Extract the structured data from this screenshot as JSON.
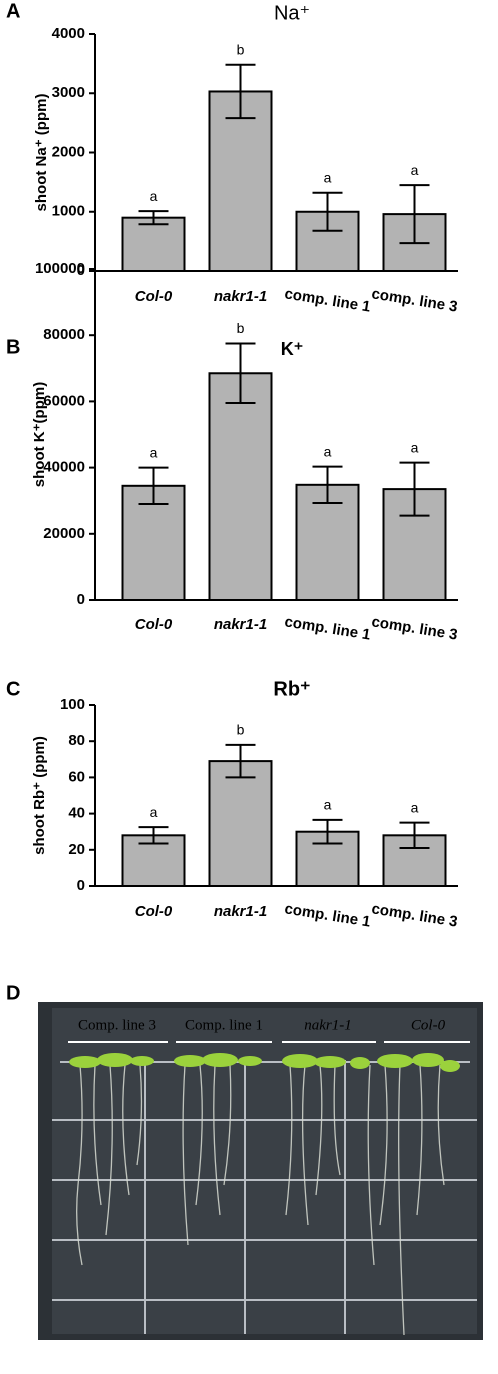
{
  "chart_data": [
    {
      "type": "bar",
      "panel": "A",
      "title": "Na⁺",
      "y_label": "shoot Na⁺ (ppm)",
      "categories": [
        "Col-0",
        "nakr1-1",
        "comp. line 1",
        "comp. line 3"
      ],
      "values": [
        900,
        3030,
        1000,
        960
      ],
      "errors": [
        110,
        450,
        320,
        490
      ],
      "annotations": [
        "a",
        "b",
        "a",
        "a"
      ],
      "color": "#b3b3b3",
      "ylim": [
        0,
        4000
      ],
      "yticks": [
        0,
        1000,
        2000,
        3000,
        4000
      ]
    },
    {
      "type": "bar",
      "panel": "B",
      "title": "K⁺",
      "y_label": "shoot K⁺(ppm)",
      "categories": [
        "Col-0",
        "nakr1-1",
        "comp. line 1",
        "comp. line 3"
      ],
      "values": [
        34500,
        68500,
        34800,
        33500
      ],
      "errors": [
        5500,
        9000,
        5500,
        8000
      ],
      "annotations": [
        "a",
        "b",
        "a",
        "a"
      ],
      "color": "#b3b3b3",
      "ylim": [
        0,
        100000
      ],
      "yticks": [
        0,
        20000,
        40000,
        60000,
        80000,
        100000
      ]
    },
    {
      "type": "bar",
      "panel": "C",
      "title": "Rb⁺",
      "y_label": "shoot Rb⁺ (ppm)",
      "categories": [
        "Col-0",
        "nakr1-1",
        "comp. line 1",
        "comp. line 3"
      ],
      "values": [
        28,
        69,
        30,
        28
      ],
      "errors": [
        4.5,
        9,
        6.5,
        7
      ],
      "annotations": [
        "a",
        "b",
        "a",
        "a"
      ],
      "color": "#b3b3b3",
      "ylim": [
        0,
        100
      ],
      "yticks": [
        0,
        20,
        40,
        60,
        80,
        100
      ]
    }
  ],
  "photo": {
    "panel": "D",
    "labels": [
      "Comp. line 3",
      "Comp. line 1",
      "nakr1-1",
      "Col-0"
    ]
  }
}
